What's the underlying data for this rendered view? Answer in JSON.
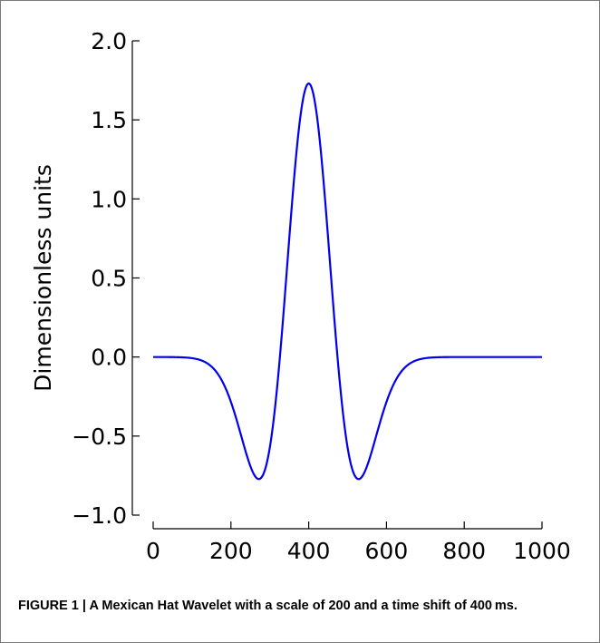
{
  "chart_data": {
    "type": "line",
    "title": "",
    "xlabel": "",
    "ylabel": "Dimensionless units",
    "xlim": [
      0,
      1000
    ],
    "ylim": [
      -1.0,
      2.0
    ],
    "grid": false,
    "legend": "none",
    "x_ticks": [
      0,
      200,
      400,
      600,
      800,
      1000
    ],
    "x_tick_labels": [
      "0",
      "200",
      "400",
      "600",
      "800",
      "1000"
    ],
    "y_ticks": [
      -1.0,
      -0.5,
      0.0,
      0.5,
      1.0,
      1.5,
      2.0
    ],
    "y_tick_labels": [
      "−1.0",
      "−0.5",
      "0.0",
      "0.5",
      "1.0",
      "1.5",
      "2.0"
    ],
    "series": [
      {
        "color": "#0000ee",
        "function": "mexican_hat",
        "scale": 200,
        "shift": 400,
        "x_range": [
          0,
          1000
        ],
        "peak": 1.73,
        "minimum": -0.77
      }
    ]
  },
  "caption": {
    "label": "FIGURE 1 | ",
    "text": "A Mexican Hat Wavelet with a scale of 200 and a time shift of 400 ms."
  }
}
